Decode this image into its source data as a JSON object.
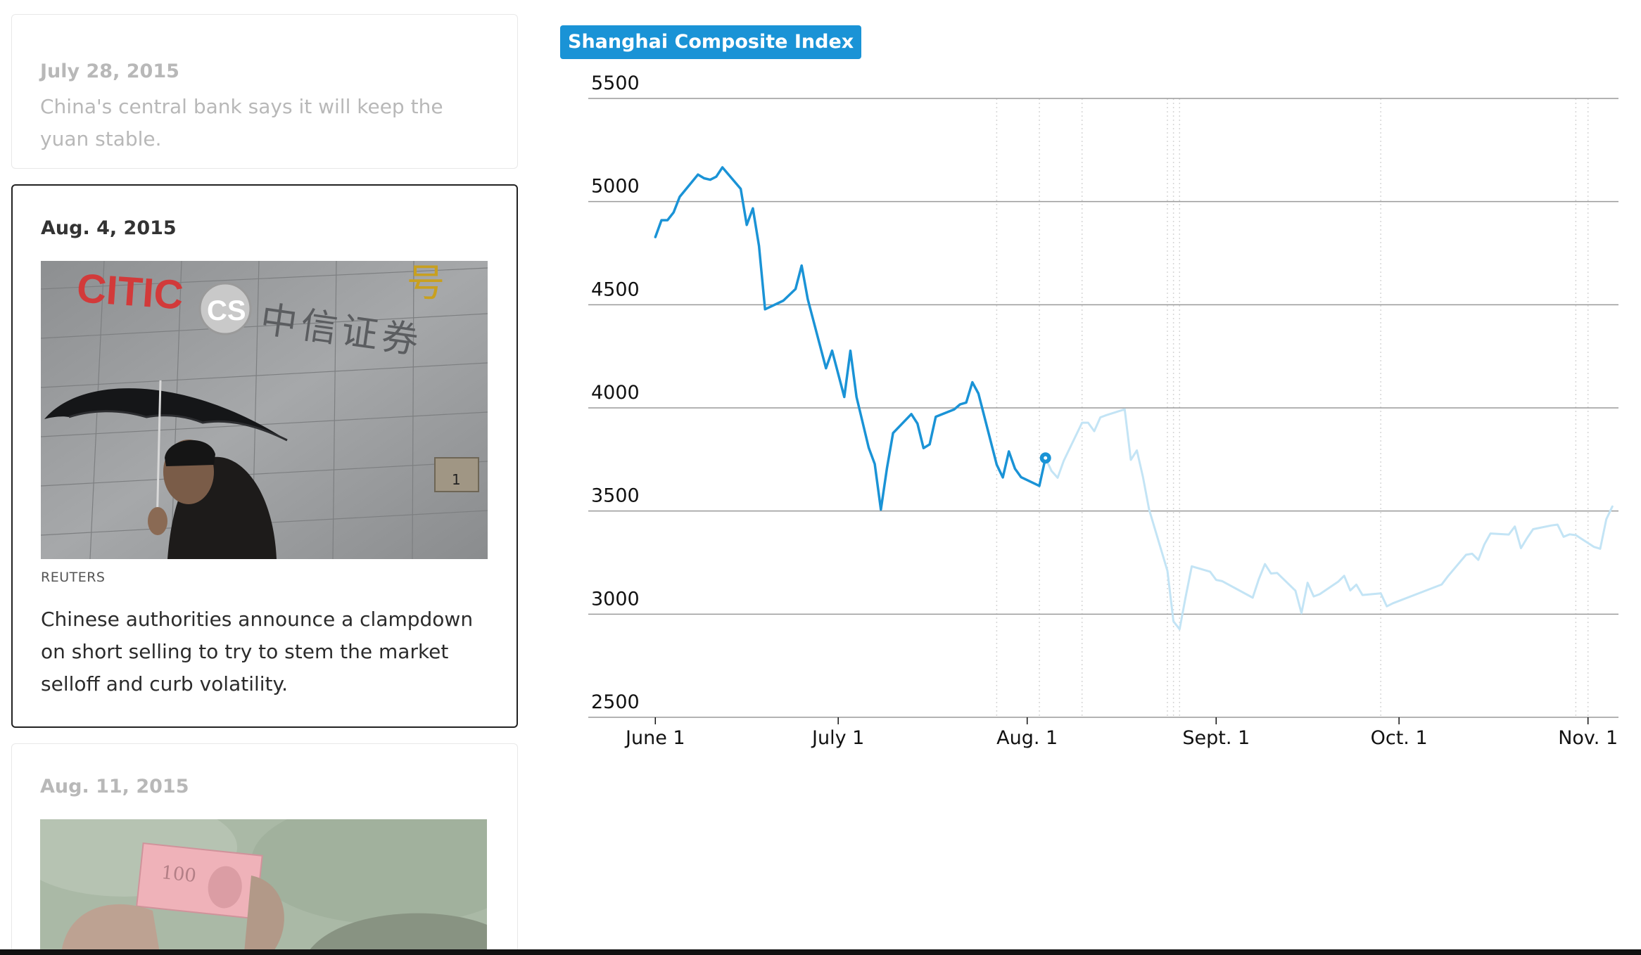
{
  "timeline": {
    "items": [
      {
        "date": "July 28, 2015",
        "text": "China's central bank says it will keep the yuan stable."
      },
      {
        "date": "Aug. 4, 2015",
        "credit": "REUTERS",
        "text": "Chinese authorities announce a clampdown on short selling to try to stem the market selloff and curb volatility.",
        "photo_sign": "CITIC",
        "photo_sign_logo": "CS",
        "photo_sign_chinese": "中信证券",
        "photo_sign_corner": "号",
        "photo_plaque": "1"
      },
      {
        "date": "Aug. 11, 2015",
        "photo_banknote": "100"
      }
    ]
  },
  "chart_data": {
    "type": "line",
    "title": "Shanghai Composite Index",
    "xlabel": "",
    "ylabel": "",
    "ylim": [
      2500,
      5500
    ],
    "yticks": [
      2500,
      3000,
      3500,
      4000,
      4500,
      5000,
      5500
    ],
    "xticks": [
      {
        "label": "June 1",
        "date": "2015-06-01"
      },
      {
        "label": "July 1",
        "date": "2015-07-01"
      },
      {
        "label": "Aug. 1",
        "date": "2015-08-01"
      },
      {
        "label": "Sept. 1",
        "date": "2015-09-01"
      },
      {
        "label": "Oct. 1",
        "date": "2015-10-01"
      },
      {
        "label": "Nov. 1",
        "date": "2015-11-01"
      }
    ],
    "xlim": [
      "2015-05-21",
      "2015-11-06"
    ],
    "grid": {
      "horizontal": true,
      "vertical_dotted_event_dates": [
        "2015-07-27",
        "2015-08-03",
        "2015-08-10",
        "2015-08-24",
        "2015-08-25",
        "2015-08-26",
        "2015-09-28",
        "2015-10-30",
        "2015-11-01"
      ]
    },
    "highlight_point": {
      "date": "2015-08-04",
      "value": 3757
    },
    "colors": {
      "active": "#1a93d6",
      "future": "#c3e4f5",
      "grid": "#9a9a9a"
    },
    "series": [
      {
        "status": "shown",
        "points": [
          [
            "2015-06-01",
            4828
          ],
          [
            "2015-06-02",
            4910
          ],
          [
            "2015-06-03",
            4910
          ],
          [
            "2015-06-04",
            4948
          ],
          [
            "2015-06-05",
            5023
          ],
          [
            "2015-06-08",
            5131
          ],
          [
            "2015-06-09",
            5113
          ],
          [
            "2015-06-10",
            5106
          ],
          [
            "2015-06-11",
            5121
          ],
          [
            "2015-06-12",
            5166
          ],
          [
            "2015-06-15",
            5062
          ],
          [
            "2015-06-16",
            4887
          ],
          [
            "2015-06-17",
            4967
          ],
          [
            "2015-06-18",
            4785
          ],
          [
            "2015-06-19",
            4478
          ],
          [
            "2015-06-22",
            4520
          ],
          [
            "2015-06-24",
            4576
          ],
          [
            "2015-06-25",
            4690
          ],
          [
            "2015-06-26",
            4527
          ],
          [
            "2015-06-29",
            4192
          ],
          [
            "2015-06-30",
            4277
          ],
          [
            "2015-07-02",
            4053
          ],
          [
            "2015-07-03",
            4277
          ],
          [
            "2015-07-04",
            4053
          ],
          [
            "2015-07-06",
            3807
          ],
          [
            "2015-07-07",
            3728
          ],
          [
            "2015-07-08",
            3507
          ],
          [
            "2015-07-09",
            3709
          ],
          [
            "2015-07-10",
            3878
          ],
          [
            "2015-07-13",
            3970
          ],
          [
            "2015-07-14",
            3924
          ],
          [
            "2015-07-15",
            3805
          ],
          [
            "2015-07-16",
            3823
          ],
          [
            "2015-07-17",
            3957
          ],
          [
            "2015-07-20",
            3992
          ],
          [
            "2015-07-21",
            4017
          ],
          [
            "2015-07-22",
            4026
          ],
          [
            "2015-07-23",
            4124
          ],
          [
            "2015-07-24",
            4070
          ],
          [
            "2015-07-27",
            3725
          ],
          [
            "2015-07-28",
            3663
          ],
          [
            "2015-07-29",
            3789
          ],
          [
            "2015-07-30",
            3705
          ],
          [
            "2015-07-31",
            3664
          ],
          [
            "2015-08-03",
            3622
          ],
          [
            "2015-08-04",
            3757
          ]
        ]
      },
      {
        "status": "upcoming",
        "points": [
          [
            "2015-08-04",
            3757
          ],
          [
            "2015-08-05",
            3694
          ],
          [
            "2015-08-06",
            3661
          ],
          [
            "2015-08-07",
            3744
          ],
          [
            "2015-08-10",
            3928
          ],
          [
            "2015-08-11",
            3928
          ],
          [
            "2015-08-12",
            3887
          ],
          [
            "2015-08-13",
            3954
          ],
          [
            "2015-08-14",
            3965
          ],
          [
            "2015-08-17",
            3993
          ],
          [
            "2015-08-18",
            3748
          ],
          [
            "2015-08-19",
            3794
          ],
          [
            "2015-08-20",
            3664
          ],
          [
            "2015-08-21",
            3507
          ],
          [
            "2015-08-24",
            3210
          ],
          [
            "2015-08-25",
            2965
          ],
          [
            "2015-08-26",
            2927
          ],
          [
            "2015-08-27",
            3084
          ],
          [
            "2015-08-28",
            3232
          ],
          [
            "2015-08-31",
            3206
          ],
          [
            "2015-09-01",
            3166
          ],
          [
            "2015-09-02",
            3160
          ],
          [
            "2015-09-07",
            3080
          ],
          [
            "2015-09-08",
            3170
          ],
          [
            "2015-09-09",
            3243
          ],
          [
            "2015-09-10",
            3197
          ],
          [
            "2015-09-11",
            3200
          ],
          [
            "2015-09-14",
            3114
          ],
          [
            "2015-09-15",
            3005
          ],
          [
            "2015-09-16",
            3152
          ],
          [
            "2015-09-17",
            3086
          ],
          [
            "2015-09-18",
            3097
          ],
          [
            "2015-09-21",
            3157
          ],
          [
            "2015-09-22",
            3186
          ],
          [
            "2015-09-23",
            3115
          ],
          [
            "2015-09-24",
            3143
          ],
          [
            "2015-09-25",
            3093
          ],
          [
            "2015-09-28",
            3101
          ],
          [
            "2015-09-29",
            3038
          ],
          [
            "2015-09-30",
            3053
          ],
          [
            "2015-10-08",
            3144
          ],
          [
            "2015-10-09",
            3183
          ],
          [
            "2015-10-12",
            3288
          ],
          [
            "2015-10-13",
            3293
          ],
          [
            "2015-10-14",
            3263
          ],
          [
            "2015-10-15",
            3338
          ],
          [
            "2015-10-16",
            3391
          ],
          [
            "2015-10-19",
            3386
          ],
          [
            "2015-10-20",
            3425
          ],
          [
            "2015-10-21",
            3320
          ],
          [
            "2015-10-22",
            3369
          ],
          [
            "2015-10-23",
            3412
          ],
          [
            "2015-10-26",
            3430
          ],
          [
            "2015-10-27",
            3434
          ],
          [
            "2015-10-28",
            3375
          ],
          [
            "2015-10-29",
            3387
          ],
          [
            "2015-10-30",
            3383
          ],
          [
            "2015-11-02",
            3326
          ],
          [
            "2015-11-03",
            3317
          ],
          [
            "2015-11-04",
            3460
          ],
          [
            "2015-11-05",
            3522
          ]
        ]
      }
    ]
  }
}
